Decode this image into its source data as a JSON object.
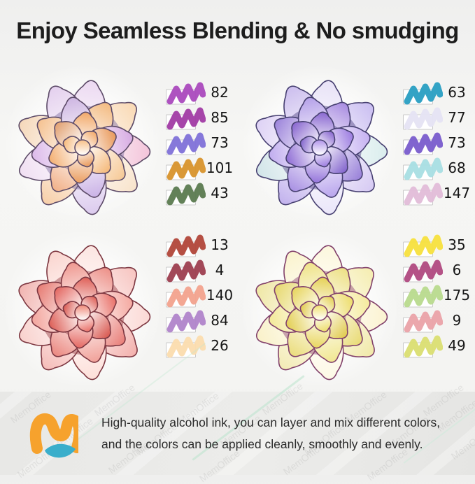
{
  "title": "Enjoy Seamless Blending & No smudging",
  "quadrants": [
    {
      "name": "peach-succulent",
      "swatches": [
        {
          "num": "82",
          "color": "#ab4bbd"
        },
        {
          "num": "85",
          "color": "#a23da5"
        },
        {
          "num": "73",
          "color": "#8172d8"
        },
        {
          "num": "101",
          "color": "#d9952f"
        },
        {
          "num": "43",
          "color": "#5d7c51"
        }
      ],
      "palette": {
        "outer": [
          "#ecd9f1",
          "#f9d9b4",
          "#f3c4da",
          "#f8e3cb",
          "#dccbee",
          "#f7cfa9",
          "#f0dff2",
          "#f5d8ba",
          "#e4d0ee"
        ],
        "mid": [
          "#f3bb82",
          "#d7abe2",
          "#f6c996",
          "#cab2e6",
          "#f1b189",
          "#dcbaea",
          "#f5c291",
          "#ceb6e2"
        ],
        "inner": [
          "#f2a96a",
          "#e9995a",
          "#f5b97a",
          "#eb9f62",
          "#f3af72",
          "#e2a172"
        ],
        "center": "#f8c189",
        "shadow": "#8574a6",
        "outline": "#5d4b68"
      }
    },
    {
      "name": "purple-succulent",
      "swatches": [
        {
          "num": "63",
          "color": "#2b9fc3"
        },
        {
          "num": "77",
          "color": "#e5e3f4"
        },
        {
          "num": "73",
          "color": "#7b5ecd"
        },
        {
          "num": "68",
          "color": "#a9dfe3"
        },
        {
          "num": "147",
          "color": "#e2bcd9"
        }
      ],
      "palette": {
        "outer": [
          "#e8e2f7",
          "#cabef1",
          "#daeded",
          "#d6caf3",
          "#eae6f9",
          "#c2b2ed",
          "#d2e5e9",
          "#ded2f5",
          "#ccbeee"
        ],
        "mid": [
          "#a98de1",
          "#c5b1f1",
          "#9981d9",
          "#b9a5ed",
          "#a991e3",
          "#c1adef",
          "#9d85db",
          "#b5a1e9"
        ],
        "inner": [
          "#8b69d1",
          "#9d7de1",
          "#8365cd",
          "#9575db",
          "#8f6dd5",
          "#8967cf"
        ],
        "center": "#b195e9",
        "shadow": "#5a4e8c",
        "outline": "#474071"
      }
    },
    {
      "name": "red-succulent",
      "swatches": [
        {
          "num": "13",
          "color": "#b2483b"
        },
        {
          "num": "4",
          "color": "#9e4151"
        },
        {
          "num": "140",
          "color": "#f2a38f"
        },
        {
          "num": "84",
          "color": "#b185cb"
        },
        {
          "num": "26",
          "color": "#fbddaf"
        }
      ],
      "palette": {
        "outer": [
          "#fce5e1",
          "#f7c5c1",
          "#fbd9d5",
          "#f3b1ad",
          "#fddfd9",
          "#f5bdb9",
          "#f9d1cd",
          "#f1b5b1",
          "#fad5cf"
        ],
        "mid": [
          "#ed9189",
          "#f5a9a1",
          "#e97f79",
          "#f1a199",
          "#eb8981",
          "#f3a59d",
          "#e77d75",
          "#ef9991"
        ],
        "inner": [
          "#df6159",
          "#e97169",
          "#d95951",
          "#e56963",
          "#dd5f57",
          "#e36761"
        ],
        "center": "#ef8979",
        "shadow": "#a04a50",
        "outline": "#7d3741"
      }
    },
    {
      "name": "yellow-succulent",
      "swatches": [
        {
          "num": "35",
          "color": "#f7e13f"
        },
        {
          "num": "6",
          "color": "#b14b81"
        },
        {
          "num": "175",
          "color": "#b9db8f"
        },
        {
          "num": "9",
          "color": "#eaa3a9"
        },
        {
          "num": "49",
          "color": "#dbdf73"
        }
      ],
      "palette": {
        "outer": [
          "#fcf7dd",
          "#f5edb1",
          "#fbf3d1",
          "#f1e9a9",
          "#fdf9e5",
          "#f3ebb5",
          "#f9f1c9",
          "#efe7a5",
          "#faf3cd"
        ],
        "mid": [
          "#ede085",
          "#f5eb9d",
          "#e9db75",
          "#f1e791",
          "#ebdd7d",
          "#f3e999",
          "#e7d971",
          "#efe389"
        ],
        "inner": [
          "#e5d156",
          "#eddd6b",
          "#e1cb4f",
          "#e9d761",
          "#e3cf53",
          "#e7d55d"
        ],
        "center": "#f1e171",
        "shadow": "#96507a",
        "outline": "#82416b"
      }
    }
  ],
  "footer": {
    "line1": "High-quality alcohol ink, you can layer and mix different colors,",
    "line2": "and the colors can be applied cleanly, smoothly and evenly.",
    "logo": {
      "orange": "#f6a22d",
      "teal": "#3aaecb"
    }
  },
  "watermark": "MemOffice"
}
